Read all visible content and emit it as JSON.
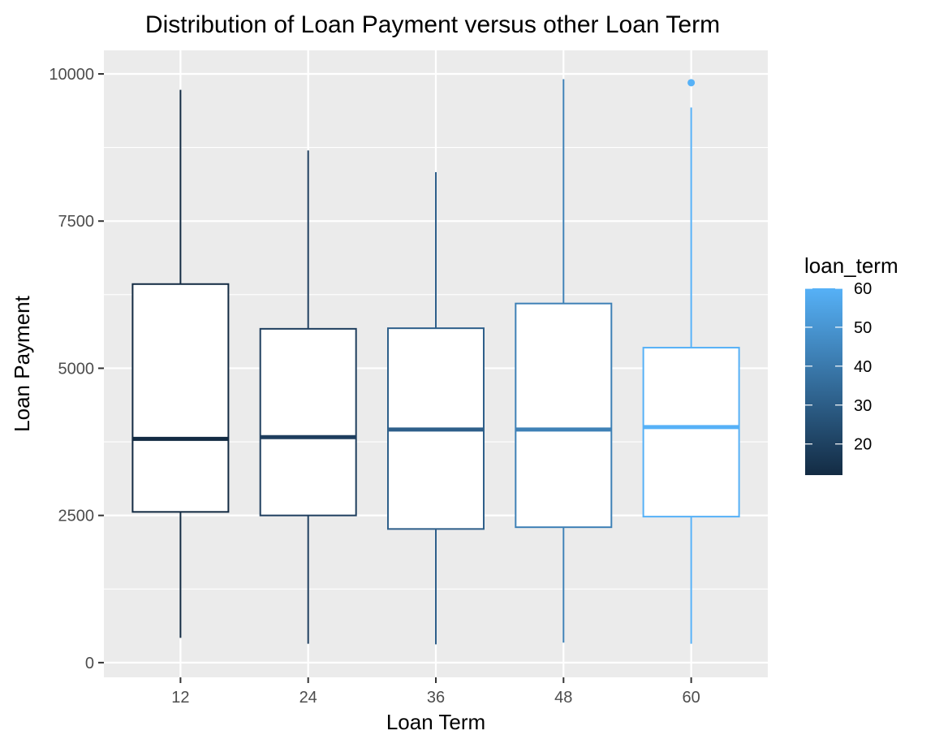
{
  "chart_data": {
    "type": "boxplot",
    "title": "Distribution of Loan Payment versus other Loan Term",
    "xlabel": "Loan Term",
    "ylabel": "Loan Payment",
    "categories": [
      "12",
      "24",
      "36",
      "48",
      "60"
    ],
    "ylim": [
      -250,
      10400
    ],
    "y_ticks": [
      0,
      2500,
      5000,
      7500,
      10000
    ],
    "grid": true,
    "boxes": [
      {
        "x": "12",
        "lower_whisker": 420,
        "q1": 2560,
        "median": 3800,
        "q3": 6430,
        "upper_whisker": 9730,
        "outliers": [],
        "color": "#132B43"
      },
      {
        "x": "24",
        "lower_whisker": 320,
        "q1": 2500,
        "median": 3830,
        "q3": 5670,
        "upper_whisker": 8700,
        "outliers": [],
        "color": "#1E3E5E"
      },
      {
        "x": "36",
        "lower_whisker": 310,
        "q1": 2270,
        "median": 3960,
        "q3": 5680,
        "upper_whisker": 8330,
        "outliers": [],
        "color": "#2E5F8A"
      },
      {
        "x": "48",
        "lower_whisker": 340,
        "q1": 2300,
        "median": 3960,
        "q3": 6100,
        "upper_whisker": 9910,
        "outliers": [],
        "color": "#3F81B6"
      },
      {
        "x": "60",
        "lower_whisker": 320,
        "q1": 2480,
        "median": 4000,
        "q3": 5350,
        "upper_whisker": 9430,
        "outliers": [
          9850
        ],
        "color": "#56B1F7"
      }
    ],
    "legend": {
      "title": "loan_term",
      "type": "colorbar",
      "position": "right",
      "range": [
        12,
        60
      ],
      "low_color": "#132B43",
      "high_color": "#56B1F7",
      "ticks": [
        20,
        30,
        40,
        50,
        60
      ]
    }
  }
}
